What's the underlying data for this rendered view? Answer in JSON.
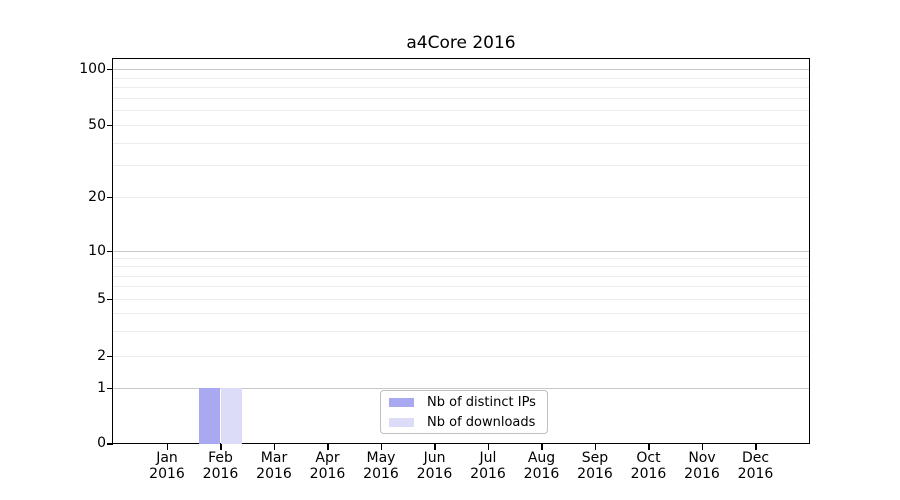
{
  "title": "a4Core 2016",
  "chart_data": {
    "type": "bar",
    "title": "a4Core 2016",
    "x_axis": {
      "months": [
        "Jan",
        "Feb",
        "Mar",
        "Apr",
        "May",
        "Jun",
        "Jul",
        "Aug",
        "Sep",
        "Oct",
        "Nov",
        "Dec"
      ],
      "year": "2016"
    },
    "y_axis": {
      "scale": "symlog",
      "major_tick_labels": [
        "0",
        "1",
        "2",
        "5",
        "10",
        "20",
        "50",
        "100"
      ],
      "major_ticks": [
        0,
        1,
        2,
        5,
        10,
        20,
        50,
        100
      ],
      "log_emphasis_gridlines": [
        1,
        10,
        100
      ],
      "minor_gridlines": [
        3,
        4,
        6,
        7,
        8,
        9,
        30,
        40,
        60,
        70,
        80,
        90
      ],
      "range": [
        0,
        100
      ]
    },
    "series": [
      {
        "name": "Nb of distinct IPs",
        "color": "#a9a9f2",
        "values": [
          0,
          1,
          0,
          0,
          0,
          0,
          0,
          0,
          0,
          0,
          0,
          0
        ]
      },
      {
        "name": "Nb of downloads",
        "color": "#dcdcf8",
        "values": [
          0,
          1,
          0,
          0,
          0,
          0,
          0,
          0,
          0,
          0,
          0,
          0
        ]
      }
    ],
    "legend_position": "lower center",
    "grid": true
  }
}
